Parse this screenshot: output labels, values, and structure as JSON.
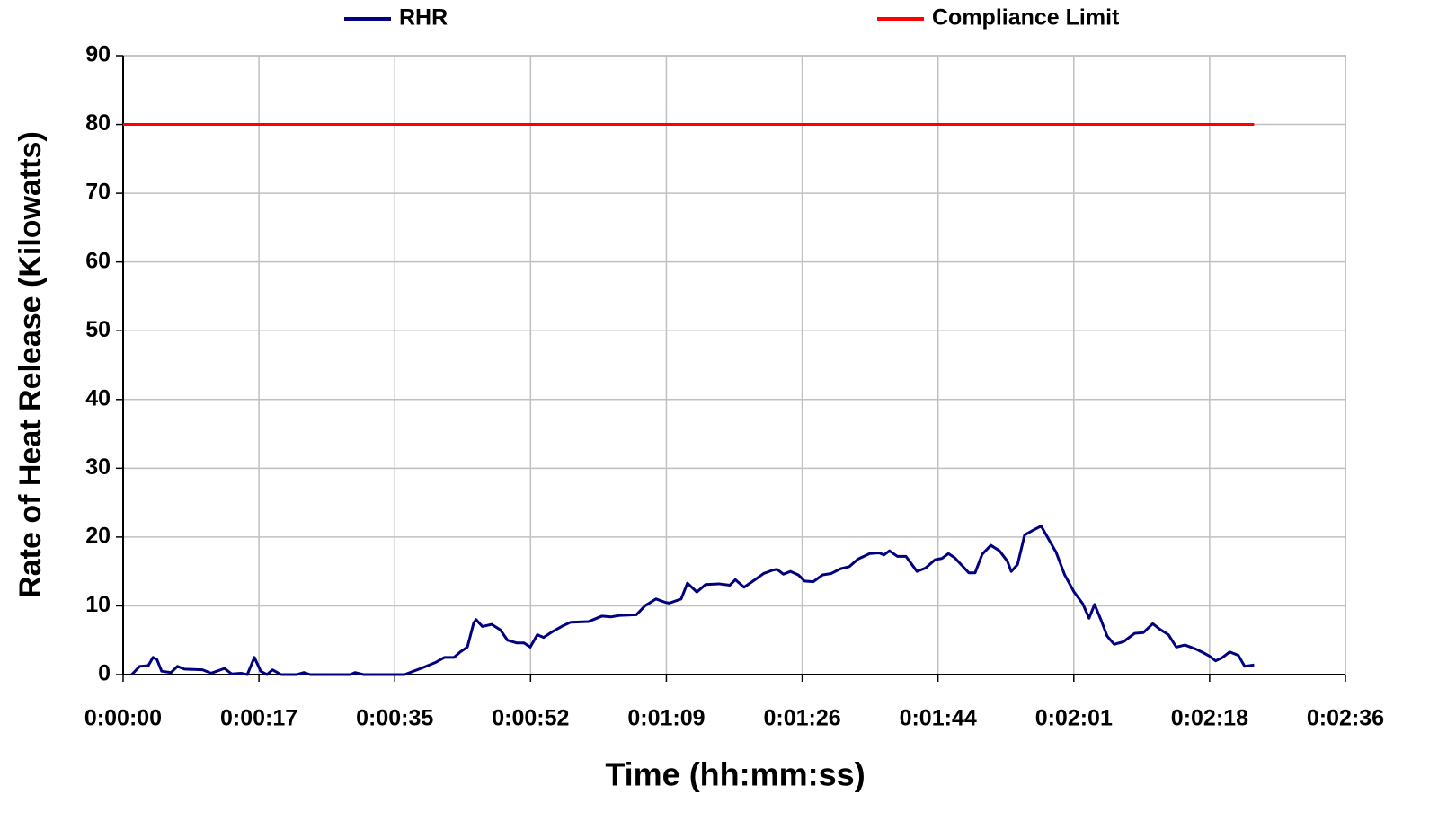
{
  "chart_data": {
    "type": "line",
    "x_label": "Time (hh:mm:ss)",
    "y_label": "Rate of Heat Release (Kilowatts)",
    "xlim": [
      0,
      155.52
    ],
    "xticks": [
      {
        "value": 0,
        "label": "0:00:00"
      },
      {
        "value": 17.28,
        "label": "0:00:17"
      },
      {
        "value": 34.56,
        "label": "0:00:35"
      },
      {
        "value": 51.84,
        "label": "0:00:52"
      },
      {
        "value": 69.12,
        "label": "0:01:09"
      },
      {
        "value": 86.4,
        "label": "0:01:26"
      },
      {
        "value": 103.68,
        "label": "0:01:44"
      },
      {
        "value": 120.96,
        "label": "0:02:01"
      },
      {
        "value": 138.24,
        "label": "0:02:18"
      },
      {
        "value": 155.52,
        "label": "0:02:36"
      }
    ],
    "ylim": [
      0,
      90
    ],
    "yticks": [
      0,
      10,
      20,
      30,
      40,
      50,
      60,
      70,
      80,
      90
    ],
    "grid": true,
    "legend": "top",
    "series": [
      {
        "name": "RHR",
        "color": "#000080",
        "x": [
          1.1,
          2.1,
          3.2,
          3.8,
          4.3,
          4.9,
          6.1,
          6.9,
          7.8,
          10.1,
          11.2,
          12.9,
          13.8,
          15.0,
          15.8,
          16.7,
          17.5,
          18.3,
          19.0,
          20.1,
          22.1,
          23.0,
          23.8,
          28.9,
          29.5,
          30.6,
          35.8,
          38.1,
          39.8,
          40.9,
          42.1,
          42.9,
          43.8,
          44.6,
          44.9,
          45.7,
          46.9,
          48.0,
          48.9,
          50.1,
          51.0,
          51.8,
          52.7,
          53.5,
          54.7,
          55.8,
          56.9,
          59.2,
          60.9,
          62.1,
          63.2,
          65.3,
          66.4,
          67.8,
          69.0,
          69.5,
          71.0,
          71.8,
          73.0,
          74.1,
          75.8,
          77.2,
          77.9,
          79.0,
          80.4,
          81.5,
          82.7,
          83.2,
          84.0,
          84.9,
          85.9,
          86.7,
          87.8,
          89.0,
          90.1,
          91.3,
          92.4,
          93.5,
          95.0,
          96.2,
          96.8,
          97.5,
          98.5,
          99.6,
          101.0,
          102.1,
          103.3,
          104.2,
          105.0,
          105.8,
          107.6,
          108.4,
          109.3,
          110.4,
          111.5,
          112.5,
          113.0,
          113.8,
          114.7,
          115.8,
          116.8,
          117.6,
          118.7,
          119.8,
          121.0,
          122.1,
          122.9,
          123.6,
          124.4,
          125.2,
          126.1,
          127.3,
          128.7,
          129.8,
          131.0,
          131.9,
          133.0,
          134.0,
          135.1,
          136.5,
          137.4,
          138.2,
          139.0,
          139.9,
          140.8,
          141.9,
          142.7,
          143.9
        ],
        "values": [
          0,
          1.2,
          1.3,
          2.5,
          2.2,
          0.5,
          0.3,
          1.2,
          0.8,
          0.7,
          0.2,
          0.9,
          0.1,
          0.2,
          0,
          2.5,
          0.5,
          0,
          0.7,
          0,
          0,
          0.3,
          0,
          0,
          0.3,
          0,
          0,
          1.0,
          1.8,
          2.5,
          2.5,
          3.3,
          4.0,
          7.5,
          8.0,
          7.0,
          7.3,
          6.5,
          5.0,
          4.6,
          4.6,
          4.0,
          5.8,
          5.4,
          6.3,
          7.0,
          7.6,
          7.7,
          8.5,
          8.4,
          8.6,
          8.7,
          10.0,
          11.0,
          10.5,
          10.4,
          11.0,
          13.3,
          12.0,
          13.1,
          13.2,
          13.0,
          13.8,
          12.7,
          13.8,
          14.7,
          15.2,
          15.3,
          14.6,
          15.0,
          14.5,
          13.6,
          13.5,
          14.5,
          14.7,
          15.4,
          15.7,
          16.8,
          17.6,
          17.7,
          17.4,
          18.0,
          17.2,
          17.2,
          15.0,
          15.5,
          16.7,
          16.9,
          17.6,
          17.0,
          14.8,
          14.8,
          17.5,
          18.8,
          18.0,
          16.5,
          15.0,
          16.0,
          20.3,
          21.0,
          21.6,
          20.0,
          17.8,
          14.5,
          12.0,
          10.3,
          8.2,
          10.2,
          8.0,
          5.6,
          4.4,
          4.8,
          6.0,
          6.1,
          7.4,
          6.6,
          5.8,
          4.0,
          4.3,
          3.7,
          3.2,
          2.7,
          2.0,
          2.5,
          3.3,
          2.8,
          1.2,
          1.4
        ]
      },
      {
        "name": "Compliance Limit",
        "color": "#ff0000",
        "x": [
          0,
          143.9
        ],
        "values": [
          80,
          80
        ]
      }
    ]
  }
}
